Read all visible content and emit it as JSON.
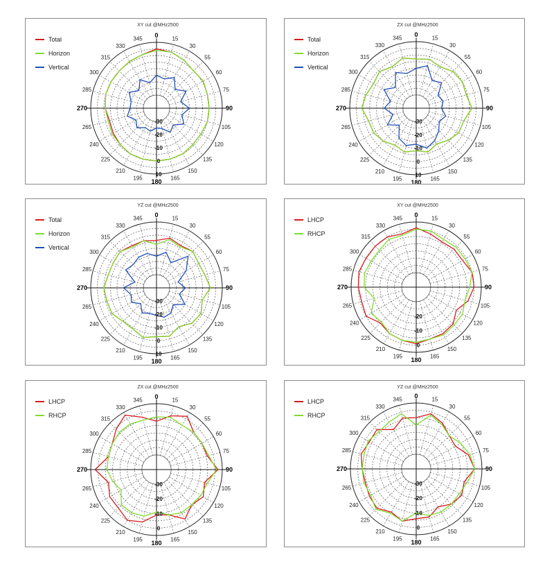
{
  "chart_data": [
    {
      "type": "line",
      "projection": "polar",
      "title": "XY cut @MHz2500",
      "angle_ticks": [
        0,
        15,
        30,
        55,
        60,
        75,
        90,
        105,
        120,
        135,
        150,
        165,
        180,
        195,
        210,
        225,
        240,
        265,
        270,
        285,
        300,
        315,
        330,
        345
      ],
      "radial_ticks": [
        "-30",
        "-20",
        "-10",
        "0",
        "10"
      ],
      "rlim": [
        -40,
        10
      ],
      "legend": "top-left",
      "series": [
        {
          "name": "Total",
          "color": "#d7191c",
          "r": [
            5,
            4,
            2,
            0,
            1,
            0,
            0,
            0,
            -1,
            -1,
            0,
            0,
            0,
            0,
            0,
            -1,
            -2,
            -3,
            -1,
            0,
            0,
            0,
            1,
            2
          ]
        },
        {
          "name": "Horizon",
          "color": "#7fdc2c",
          "r": [
            4,
            4,
            2,
            0,
            1,
            0,
            0,
            0,
            -1,
            -1,
            0,
            0,
            0,
            0,
            0,
            -1,
            -1,
            -2,
            -1,
            0,
            0,
            0,
            1,
            2
          ]
        },
        {
          "name": "Vertical",
          "color": "#1f4fb8",
          "r": [
            -15,
            -17,
            -13,
            -20,
            -14,
            -21,
            -15,
            -20,
            -16,
            -22,
            -19,
            -24,
            -25,
            -22,
            -23,
            -19,
            -22,
            -17,
            -20,
            -20,
            -16,
            -21,
            -15,
            -20
          ]
        }
      ]
    },
    {
      "type": "line",
      "projection": "polar",
      "title": "ZX cut @MHz2500",
      "angle_ticks": [
        0,
        15,
        30,
        55,
        60,
        75,
        90,
        105,
        120,
        135,
        150,
        165,
        180,
        195,
        210,
        225,
        240,
        265,
        270,
        285,
        300,
        315,
        330,
        345
      ],
      "radial_ticks": [
        "-30",
        "-20",
        "-10",
        "0",
        "10"
      ],
      "rlim": [
        -40,
        10
      ],
      "legend": "top-left",
      "series": [
        {
          "name": "Total",
          "color": "#d7191c",
          "r": [
            -3,
            -2,
            -4,
            -1,
            0,
            -1,
            2,
            -3,
            -3,
            -6,
            -9,
            -6,
            -8,
            -6,
            -8,
            -5,
            -3,
            -3,
            1,
            -1,
            -3,
            -1,
            -4,
            -1
          ]
        },
        {
          "name": "Horizon",
          "color": "#7fdc2c",
          "r": [
            -3,
            -2,
            -4,
            -1,
            0,
            -1,
            2,
            -3,
            -3,
            -6,
            -9,
            -6,
            -8,
            -6,
            -8,
            -5,
            -3,
            -3,
            1,
            -1,
            -3,
            -1,
            -4,
            -1
          ]
        },
        {
          "name": "Vertical",
          "color": "#1f4fb8",
          "r": [
            -10,
            -7,
            -16,
            -13,
            -21,
            -19,
            -21,
            -17,
            -20,
            -16,
            -12,
            -9,
            -13,
            -11,
            -14,
            -22,
            -15,
            -22,
            -16,
            -20,
            -12,
            -18,
            -9,
            -13
          ]
        }
      ]
    },
    {
      "type": "line",
      "projection": "polar",
      "title": "YZ cut @MHz2500",
      "angle_ticks": [
        0,
        15,
        30,
        55,
        60,
        75,
        90,
        105,
        120,
        135,
        150,
        165,
        180,
        195,
        210,
        225,
        240,
        265,
        270,
        285,
        300,
        315,
        330,
        345
      ],
      "radial_ticks": [
        "-30",
        "-20",
        "-10",
        "0",
        "10"
      ],
      "rlim": [
        -40,
        10
      ],
      "legend": "top-left",
      "series": [
        {
          "name": "Total",
          "color": "#d7191c",
          "r": [
            -4,
            -1,
            -3,
            -1,
            -3,
            -2,
            1,
            -4,
            -1,
            -2,
            -6,
            -2,
            -3,
            -1,
            -4,
            -4,
            -1,
            -1,
            0,
            -2,
            -2,
            -1,
            -3,
            -3
          ]
        },
        {
          "name": "Horizon",
          "color": "#7fdc2c",
          "r": [
            -7,
            -2,
            -4,
            -1,
            -3,
            -2,
            1,
            -4,
            -1,
            -2,
            -6,
            -2,
            -3,
            -1,
            -4,
            -4,
            -1,
            -1,
            0,
            -2,
            -2,
            -1,
            -4,
            -3
          ]
        },
        {
          "name": "Vertical",
          "color": "#1f4fb8",
          "r": [
            -16,
            -12,
            -18,
            -6,
            -14,
            -23,
            -18,
            -22,
            -15,
            -22,
            -18,
            -17,
            -19,
            -20,
            -18,
            -23,
            -18,
            -20,
            -15,
            -23,
            -13,
            -15,
            -13,
            -13
          ]
        }
      ]
    },
    {
      "type": "line",
      "projection": "polar",
      "title": "XY cut @MHz2500",
      "angle_ticks": [
        0,
        15,
        30,
        55,
        60,
        75,
        90,
        105,
        120,
        135,
        150,
        165,
        180,
        195,
        210,
        225,
        240,
        265,
        270,
        285,
        300,
        315,
        330,
        345
      ],
      "radial_ticks": [
        "-20",
        "-10",
        "0"
      ],
      "rlim": [
        -40,
        5
      ],
      "legend": "top-left",
      "series": [
        {
          "name": "LHCP",
          "color": "#d7191c",
          "r": [
            1,
            -2,
            -4,
            -3,
            -3,
            0,
            0,
            -3,
            -8,
            -4,
            -3,
            -3,
            -1,
            -2,
            -3,
            -5,
            0,
            -1,
            0,
            1,
            0,
            0,
            0,
            -2
          ]
        },
        {
          "name": "RHCP",
          "color": "#7fdc2c",
          "r": [
            0,
            0,
            -2,
            -1,
            -1,
            0,
            -3,
            -5,
            -3,
            -3,
            -2,
            -3,
            -2,
            -2,
            -3,
            -6,
            -4,
            -10,
            -4,
            -3,
            -4,
            -4,
            -2,
            -3
          ]
        }
      ]
    },
    {
      "type": "line",
      "projection": "polar",
      "title": "ZX cut @MHz2500",
      "angle_ticks": [
        0,
        15,
        30,
        55,
        60,
        75,
        90,
        105,
        120,
        135,
        150,
        165,
        180,
        195,
        210,
        225,
        240,
        265,
        270,
        285,
        300,
        315,
        330,
        345
      ],
      "radial_ticks": [
        "-30",
        "-20",
        "-10",
        "0"
      ],
      "rlim": [
        -40,
        5
      ],
      "legend": "top-left",
      "series": [
        {
          "name": "LHCP",
          "color": "#d7191c",
          "r": [
            -7,
            -2,
            2,
            -4,
            -4,
            -4,
            2,
            -6,
            -3,
            -6,
            -1,
            -8,
            -9,
            -3,
            0,
            -3,
            -3,
            -6,
            2,
            -6,
            -5,
            -1,
            3,
            -3
          ]
        },
        {
          "name": "RHCP",
          "color": "#7fdc2c",
          "r": [
            -4,
            -3,
            -5,
            -4,
            -4,
            -3,
            1,
            -4,
            -5,
            -6,
            -6,
            -8,
            -11,
            -7,
            -6,
            -6,
            -12,
            -9,
            -6,
            -6,
            -5,
            -4,
            -4,
            -5
          ]
        }
      ]
    },
    {
      "type": "line",
      "projection": "polar",
      "title": "YZ cut @MHz2500",
      "angle_ticks": [
        0,
        15,
        30,
        55,
        60,
        75,
        90,
        105,
        120,
        135,
        150,
        165,
        180,
        195,
        210,
        225,
        240,
        265,
        270,
        285,
        300,
        315,
        330,
        345
      ],
      "radial_ticks": [
        "-30",
        "-20",
        "-10",
        "0"
      ],
      "rlim": [
        -40,
        5
      ],
      "legend": "top-left",
      "series": [
        {
          "name": "LHCP",
          "color": "#d7191c",
          "r": [
            -5,
            -1,
            -4,
            -8,
            -9,
            -3,
            0,
            -6,
            -4,
            -6,
            -10,
            -6,
            -6,
            -3,
            -6,
            -2,
            -3,
            -4,
            -3,
            -1,
            -3,
            -2,
            -9,
            -4
          ]
        },
        {
          "name": "RHCP",
          "color": "#7fdc2c",
          "r": [
            -10,
            -2,
            -5,
            -8,
            -5,
            -2,
            0,
            -4,
            -6,
            -6,
            -6,
            -7,
            -10,
            -3,
            -5,
            -1,
            -4,
            -3,
            -3,
            -3,
            -2,
            -4,
            -3,
            -1
          ]
        }
      ]
    }
  ]
}
